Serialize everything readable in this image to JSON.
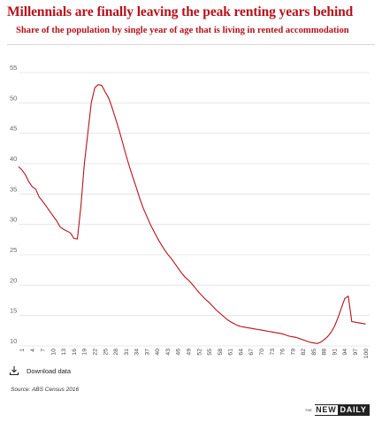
{
  "title": "Millennials are finally leaving the peak renting years behind",
  "subtitle": "Share of the population by single year of age that is living in rented accommodation",
  "download": {
    "label": "Download data",
    "icon": "download-icon"
  },
  "source": "Source: ABS Census 2016",
  "logo": {
    "the": "THE",
    "new": "NEW",
    "daily": "DAILY"
  },
  "colors": {
    "title": "#b5121b",
    "line": "#b5121b",
    "grid": "#e2e2e2"
  },
  "chart_data": {
    "type": "line",
    "xlabel": "",
    "ylabel": "",
    "ylim": [
      10,
      55
    ],
    "yticks": [
      10,
      15,
      20,
      25,
      30,
      35,
      40,
      45,
      50,
      55
    ],
    "xlim": [
      1,
      100
    ],
    "xtick_labels": [
      1,
      4,
      7,
      10,
      13,
      16,
      19,
      22,
      25,
      28,
      31,
      34,
      37,
      40,
      43,
      46,
      49,
      52,
      55,
      58,
      61,
      64,
      67,
      70,
      73,
      76,
      79,
      82,
      85,
      88,
      91,
      94,
      97,
      100
    ],
    "grid": "horizontal",
    "series": [
      {
        "x": [
          0,
          1,
          2,
          3,
          4,
          5,
          6,
          7,
          8,
          9,
          10,
          11,
          12,
          13,
          14,
          15,
          16,
          17,
          18,
          19,
          20,
          21,
          22,
          23,
          24,
          25,
          26,
          27,
          28,
          29,
          30,
          31,
          32,
          33,
          34,
          35,
          36,
          37,
          38,
          39,
          40,
          41,
          42,
          43,
          44,
          45,
          46,
          47,
          48,
          49,
          50,
          51,
          52,
          53,
          54,
          55,
          56,
          57,
          58,
          59,
          60,
          61,
          62,
          63,
          64,
          65,
          66,
          67,
          68,
          69,
          70,
          71,
          72,
          73,
          74,
          75,
          76,
          77,
          78,
          79,
          80,
          81,
          82,
          83,
          84,
          85,
          86,
          87,
          88,
          89,
          90,
          91,
          92,
          93,
          94,
          95,
          96,
          97,
          98,
          99,
          100
        ],
        "values": [
          39.5,
          39,
          38.2,
          37,
          36.2,
          35.8,
          34.5,
          33.8,
          33,
          32.2,
          31.4,
          30.6,
          29.6,
          29.2,
          28.9,
          28.6,
          27.7,
          27.6,
          33,
          40,
          45,
          50,
          52.5,
          53,
          52.9,
          51.8,
          50.8,
          49.2,
          47.4,
          45.5,
          43.5,
          41.4,
          39.5,
          37.7,
          36,
          34.2,
          32.6,
          31.3,
          30,
          28.9,
          27.8,
          26.8,
          25.9,
          25.1,
          24.4,
          23.6,
          22.8,
          22,
          21.3,
          20.8,
          20.2,
          19.5,
          18.8,
          18.2,
          17.6,
          17.1,
          16.5,
          15.9,
          15.4,
          14.9,
          14.4,
          14,
          13.7,
          13.4,
          13.2,
          13.1,
          13,
          12.9,
          12.8,
          12.7,
          12.6,
          12.5,
          12.4,
          12.3,
          12.2,
          12.1,
          12.0,
          11.8,
          11.6,
          11.5,
          11.4,
          11.2,
          11,
          10.8,
          10.6,
          10.5,
          10.4,
          10.6,
          11,
          11.5,
          12.2,
          13.2,
          14.6,
          16.2,
          17.8,
          18.2,
          14,
          13.9,
          13.8,
          13.7,
          13.6
        ]
      }
    ]
  }
}
